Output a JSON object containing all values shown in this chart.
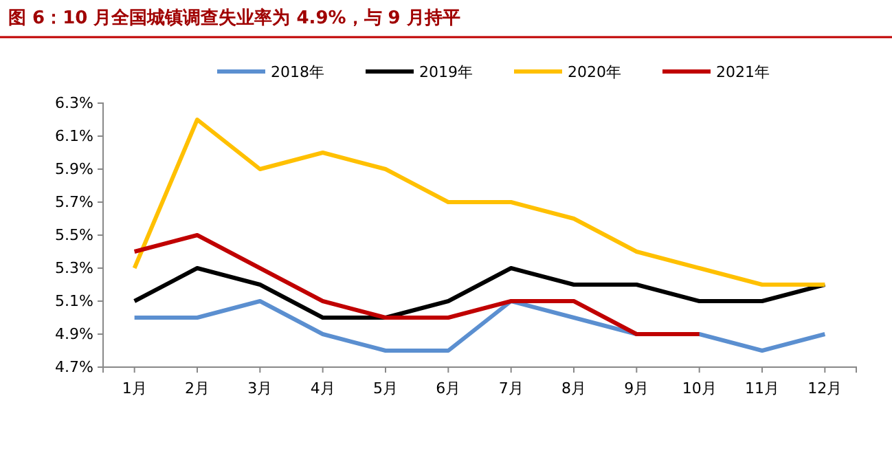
{
  "chart_data": {
    "type": "line",
    "title": "图 6：10 月全国城镇调查失业率为 4.9%，与 9 月持平",
    "categories": [
      "1月",
      "2月",
      "3月",
      "4月",
      "5月",
      "6月",
      "7月",
      "8月",
      "9月",
      "10月",
      "11月",
      "12月"
    ],
    "series": [
      {
        "name": "2018年",
        "color": "#5b8fd0",
        "values": [
          5.0,
          5.0,
          5.1,
          4.9,
          4.8,
          4.8,
          5.1,
          5.0,
          4.9,
          4.9,
          4.8,
          4.9
        ]
      },
      {
        "name": "2019年",
        "color": "#000000",
        "values": [
          5.1,
          5.3,
          5.2,
          5.0,
          5.0,
          5.1,
          5.3,
          5.2,
          5.2,
          5.1,
          5.1,
          5.2
        ]
      },
      {
        "name": "2020年",
        "color": "#ffc000",
        "values": [
          5.3,
          6.2,
          5.9,
          6.0,
          5.9,
          5.7,
          5.7,
          5.6,
          5.4,
          5.3,
          5.2,
          5.2
        ]
      },
      {
        "name": "2021年",
        "color": "#c00000",
        "values": [
          5.4,
          5.5,
          5.3,
          5.1,
          5.0,
          5.0,
          5.1,
          5.1,
          4.9,
          4.9,
          null,
          null
        ]
      }
    ],
    "ylim": [
      4.7,
      6.3
    ],
    "yticks": [
      {
        "value": 4.7,
        "label": "4.7%"
      },
      {
        "value": 4.9,
        "label": "4.9%"
      },
      {
        "value": 5.1,
        "label": "5.1%"
      },
      {
        "value": 5.3,
        "label": "5.3%"
      },
      {
        "value": 5.5,
        "label": "5.5%"
      },
      {
        "value": 5.7,
        "label": "5.7%"
      },
      {
        "value": 5.9,
        "label": "5.9%"
      },
      {
        "value": 6.1,
        "label": "6.1%"
      },
      {
        "value": 6.3,
        "label": "6.3%"
      }
    ],
    "grid": false,
    "legend": "top",
    "marker": "none",
    "line_style": "solid"
  }
}
